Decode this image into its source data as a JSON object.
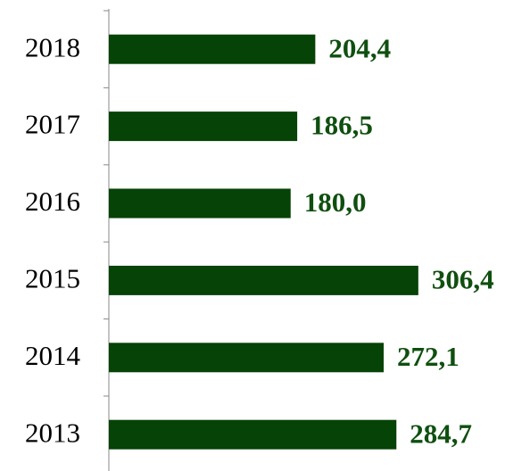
{
  "chart_data": {
    "type": "bar",
    "orientation": "horizontal",
    "categories": [
      "2018",
      "2017",
      "2016",
      "2015",
      "2014",
      "2013"
    ],
    "values": [
      204.4,
      186.5,
      180.0,
      306.4,
      272.1,
      284.7
    ],
    "value_labels": [
      "204,4",
      "186,5",
      "180,0",
      "306,4",
      "272,1",
      "284,7"
    ],
    "color": "#064306"
  }
}
